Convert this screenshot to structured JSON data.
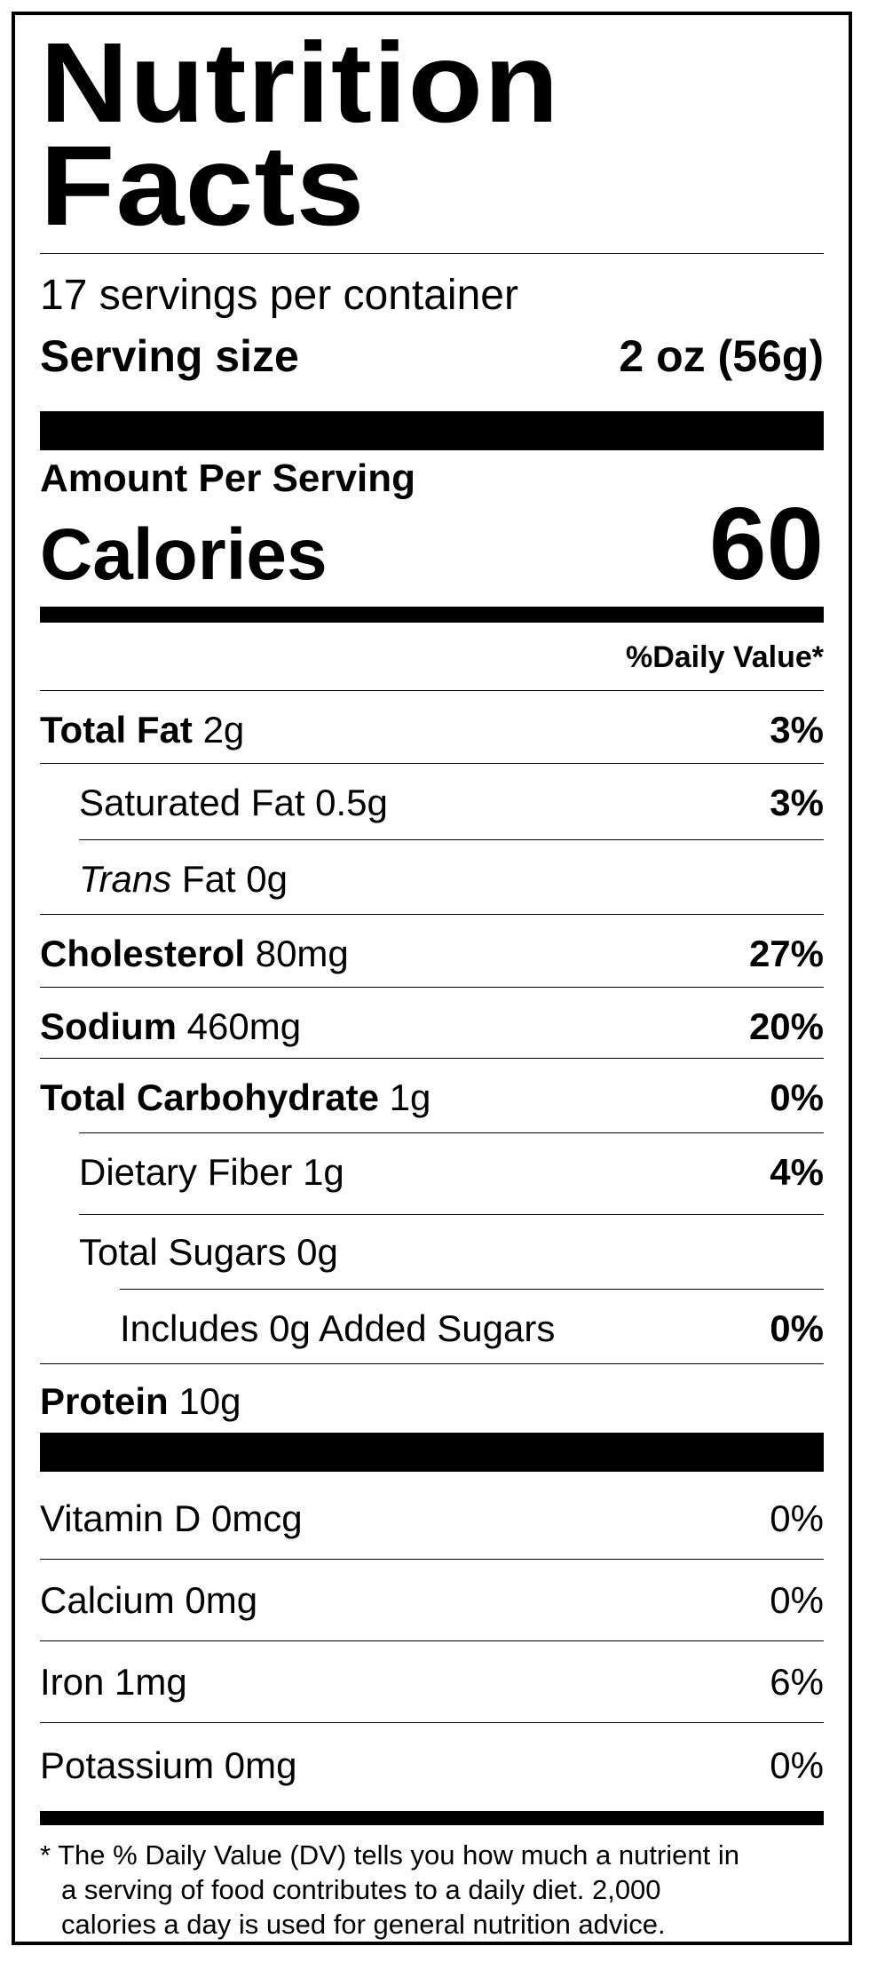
{
  "label": {
    "title_line1": "Nutrition",
    "title_line2": "Facts",
    "servings_per_container": "17 servings per container",
    "serving_size_label": "Serving size",
    "serving_size_value": "2 oz (56g)",
    "amount_per_serving": "Amount Per Serving",
    "calories_label": "Calories",
    "calories_value": "60",
    "daily_value_header": "%Daily Value*",
    "nutrients": [
      {
        "name": "Total Fat",
        "amount": "2g",
        "dv": "3%"
      },
      {
        "name": "Saturated Fat",
        "amount": "0.5g",
        "dv": "3%"
      },
      {
        "name_italic": "Trans",
        "name": "Fat",
        "amount": "0g"
      },
      {
        "name": "Cholesterol",
        "amount": "80mg",
        "dv": "27%"
      },
      {
        "name": "Sodium",
        "amount": "460mg",
        "dv": "20%"
      },
      {
        "name": "Total Carbohydrate",
        "amount": "1g",
        "dv": "0%"
      },
      {
        "name": "Dietary Fiber",
        "amount": "1g",
        "dv": "4%"
      },
      {
        "name": "Total Sugars",
        "amount": "0g"
      },
      {
        "text": "Includes 0g Added Sugars",
        "dv": "0%"
      },
      {
        "name": "Protein",
        "amount": "10g"
      }
    ],
    "vitamins": [
      {
        "text": "Vitamin D 0mcg",
        "dv": "0%"
      },
      {
        "text": "Calcium 0mg",
        "dv": "0%"
      },
      {
        "text": "Iron 1mg",
        "dv": "6%"
      },
      {
        "text": "Potassium 0mg",
        "dv": "0%"
      }
    ],
    "footnote_line1": "* The % Daily Value (DV) tells you how much a nutrient in",
    "footnote_line2": "a serving of food contributes to a daily diet. 2,000",
    "footnote_line3": "calories a day is used for general nutrition advice."
  }
}
